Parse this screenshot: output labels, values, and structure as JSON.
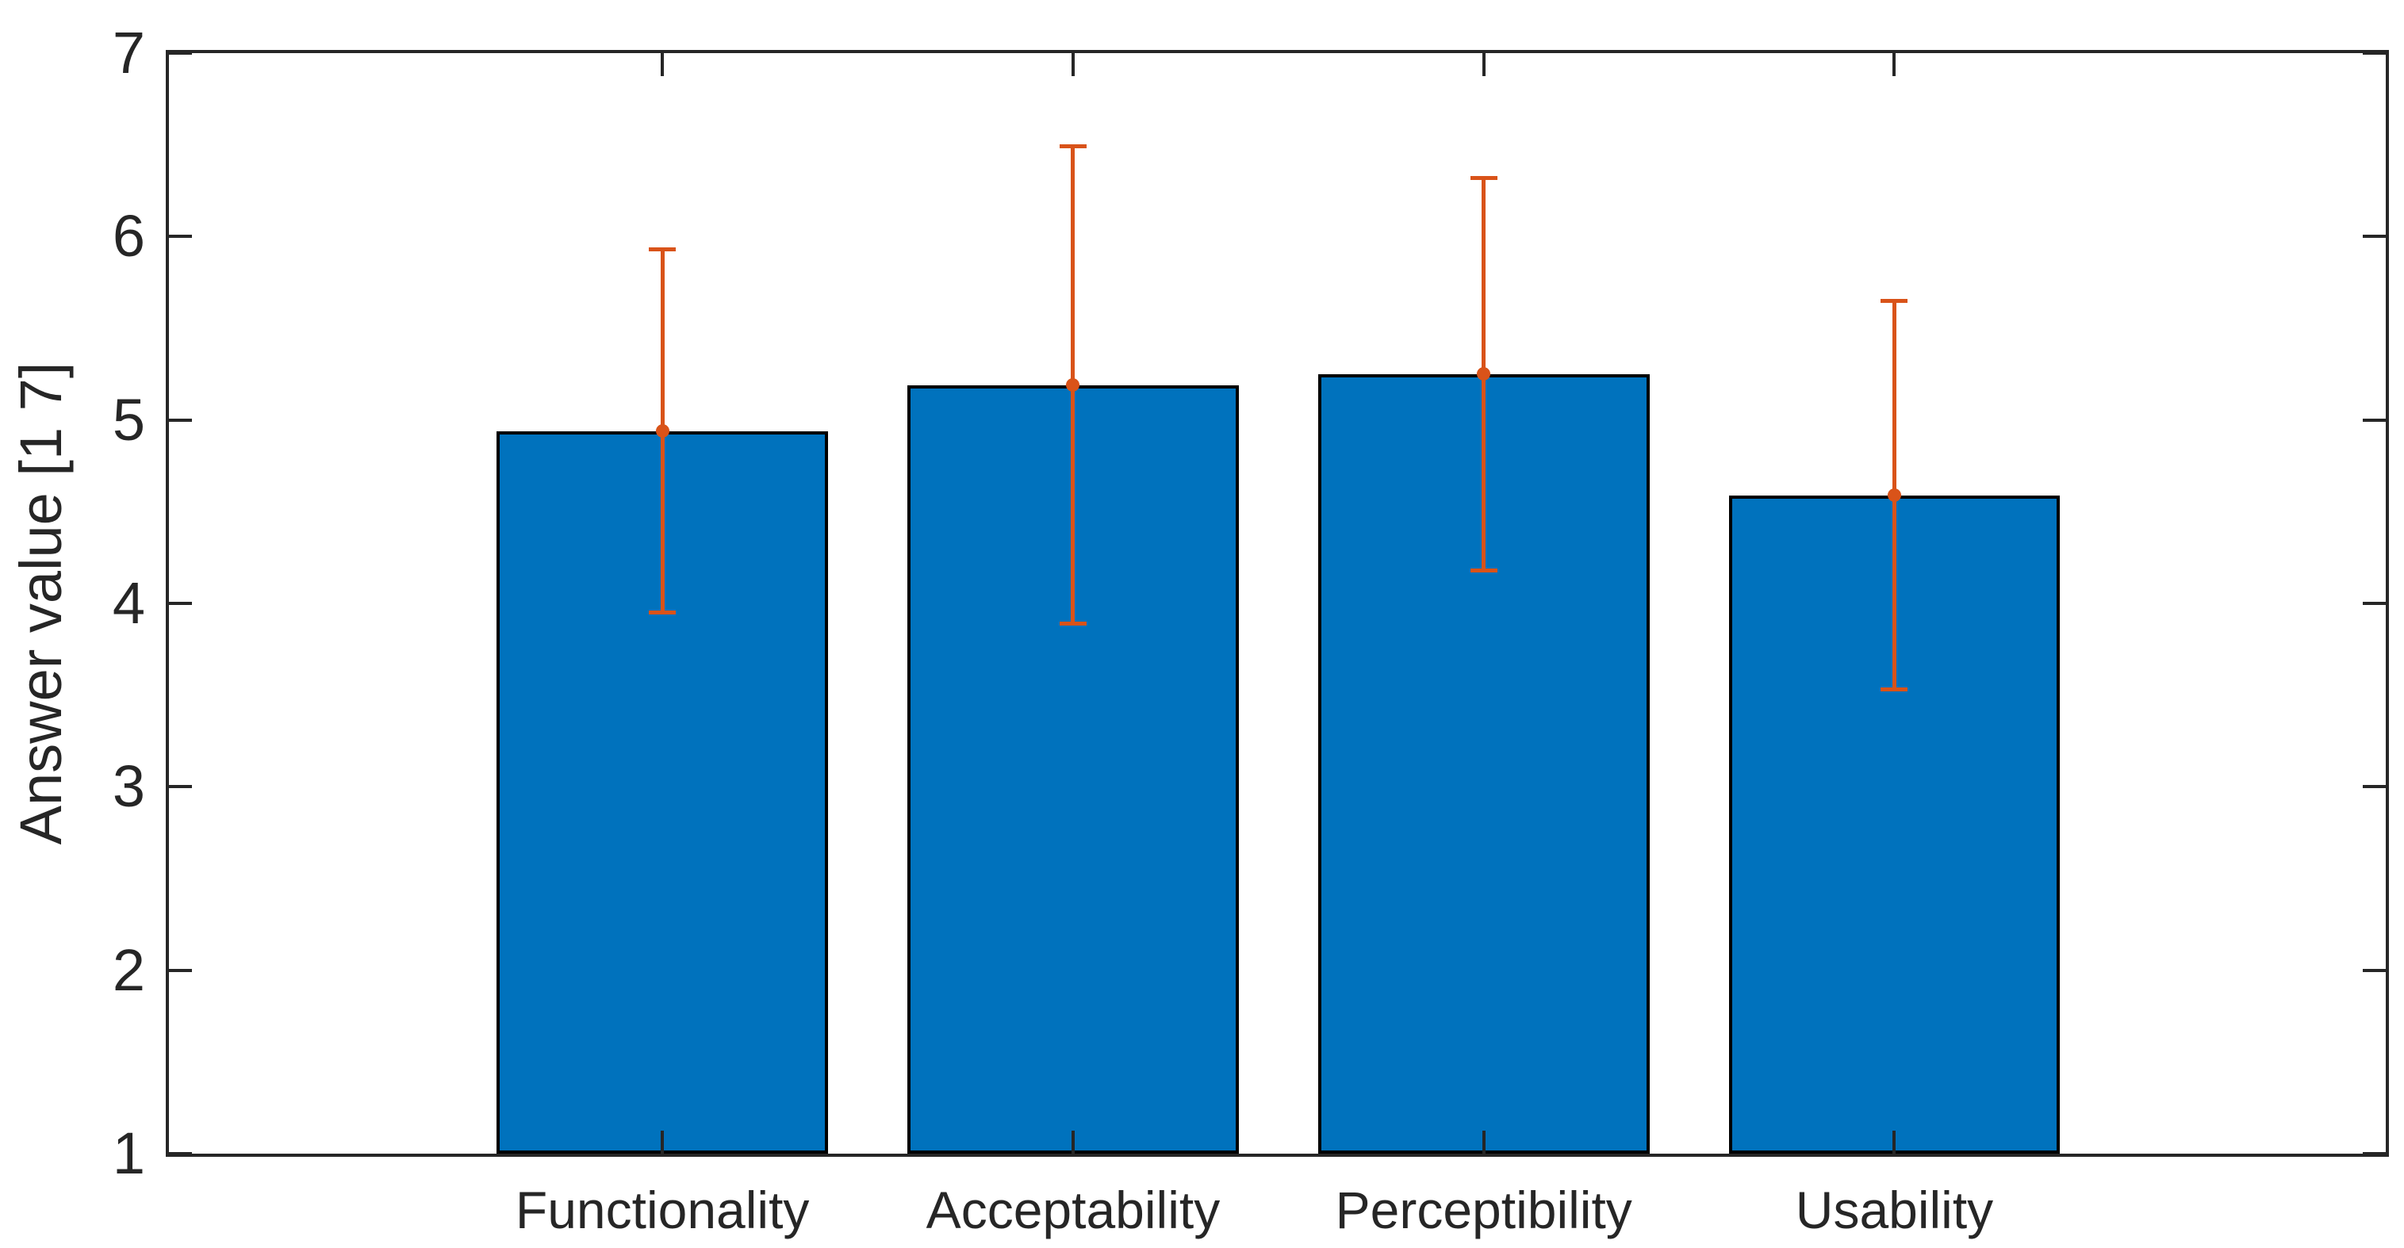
{
  "figure": {
    "background": "#ffffff"
  },
  "chart_data": {
    "type": "bar",
    "categories": [
      "Functionality",
      "Acceptability",
      "Perceptibility",
      "Usability"
    ],
    "values": [
      4.94,
      5.19,
      5.25,
      4.59
    ],
    "error_low": [
      3.95,
      3.89,
      4.18,
      3.53
    ],
    "error_high": [
      5.93,
      6.49,
      6.32,
      5.65
    ],
    "title": "",
    "xlabel": "",
    "ylabel": "Answer value [1 7]",
    "ylim": [
      1,
      7
    ],
    "yticks": [
      1,
      2,
      3,
      4,
      5,
      6,
      7
    ],
    "grid": false,
    "legend": null,
    "box": true,
    "error_marker": "dot",
    "colors": {
      "bar_fill": "#0072BD",
      "bar_edge": "#000000",
      "error_bar": "#D95319",
      "axis": "#262626",
      "text": "#262626",
      "background": "#ffffff"
    }
  }
}
